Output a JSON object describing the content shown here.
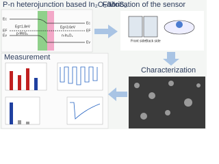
{
  "title": "P-n heterojunction based In₂O₃/MoS₂",
  "fabrication": {
    "title": "Fabrication of the sensor",
    "front": "Front side",
    "back": "Back side"
  },
  "characterization": {
    "title": "Characterization"
  },
  "measurement": {
    "title": "Measurement"
  },
  "band_diagram": {
    "p_label": "p-MoS₂",
    "n_label": "n-In₂O₃",
    "gap_p": "Eg=1.8eV",
    "gap_n": "Eg=3.6eV",
    "levels_left": [
      "Ec",
      "EF",
      "Ev"
    ],
    "levels_right": [
      "Ec",
      "EF",
      "Ev"
    ]
  }
}
